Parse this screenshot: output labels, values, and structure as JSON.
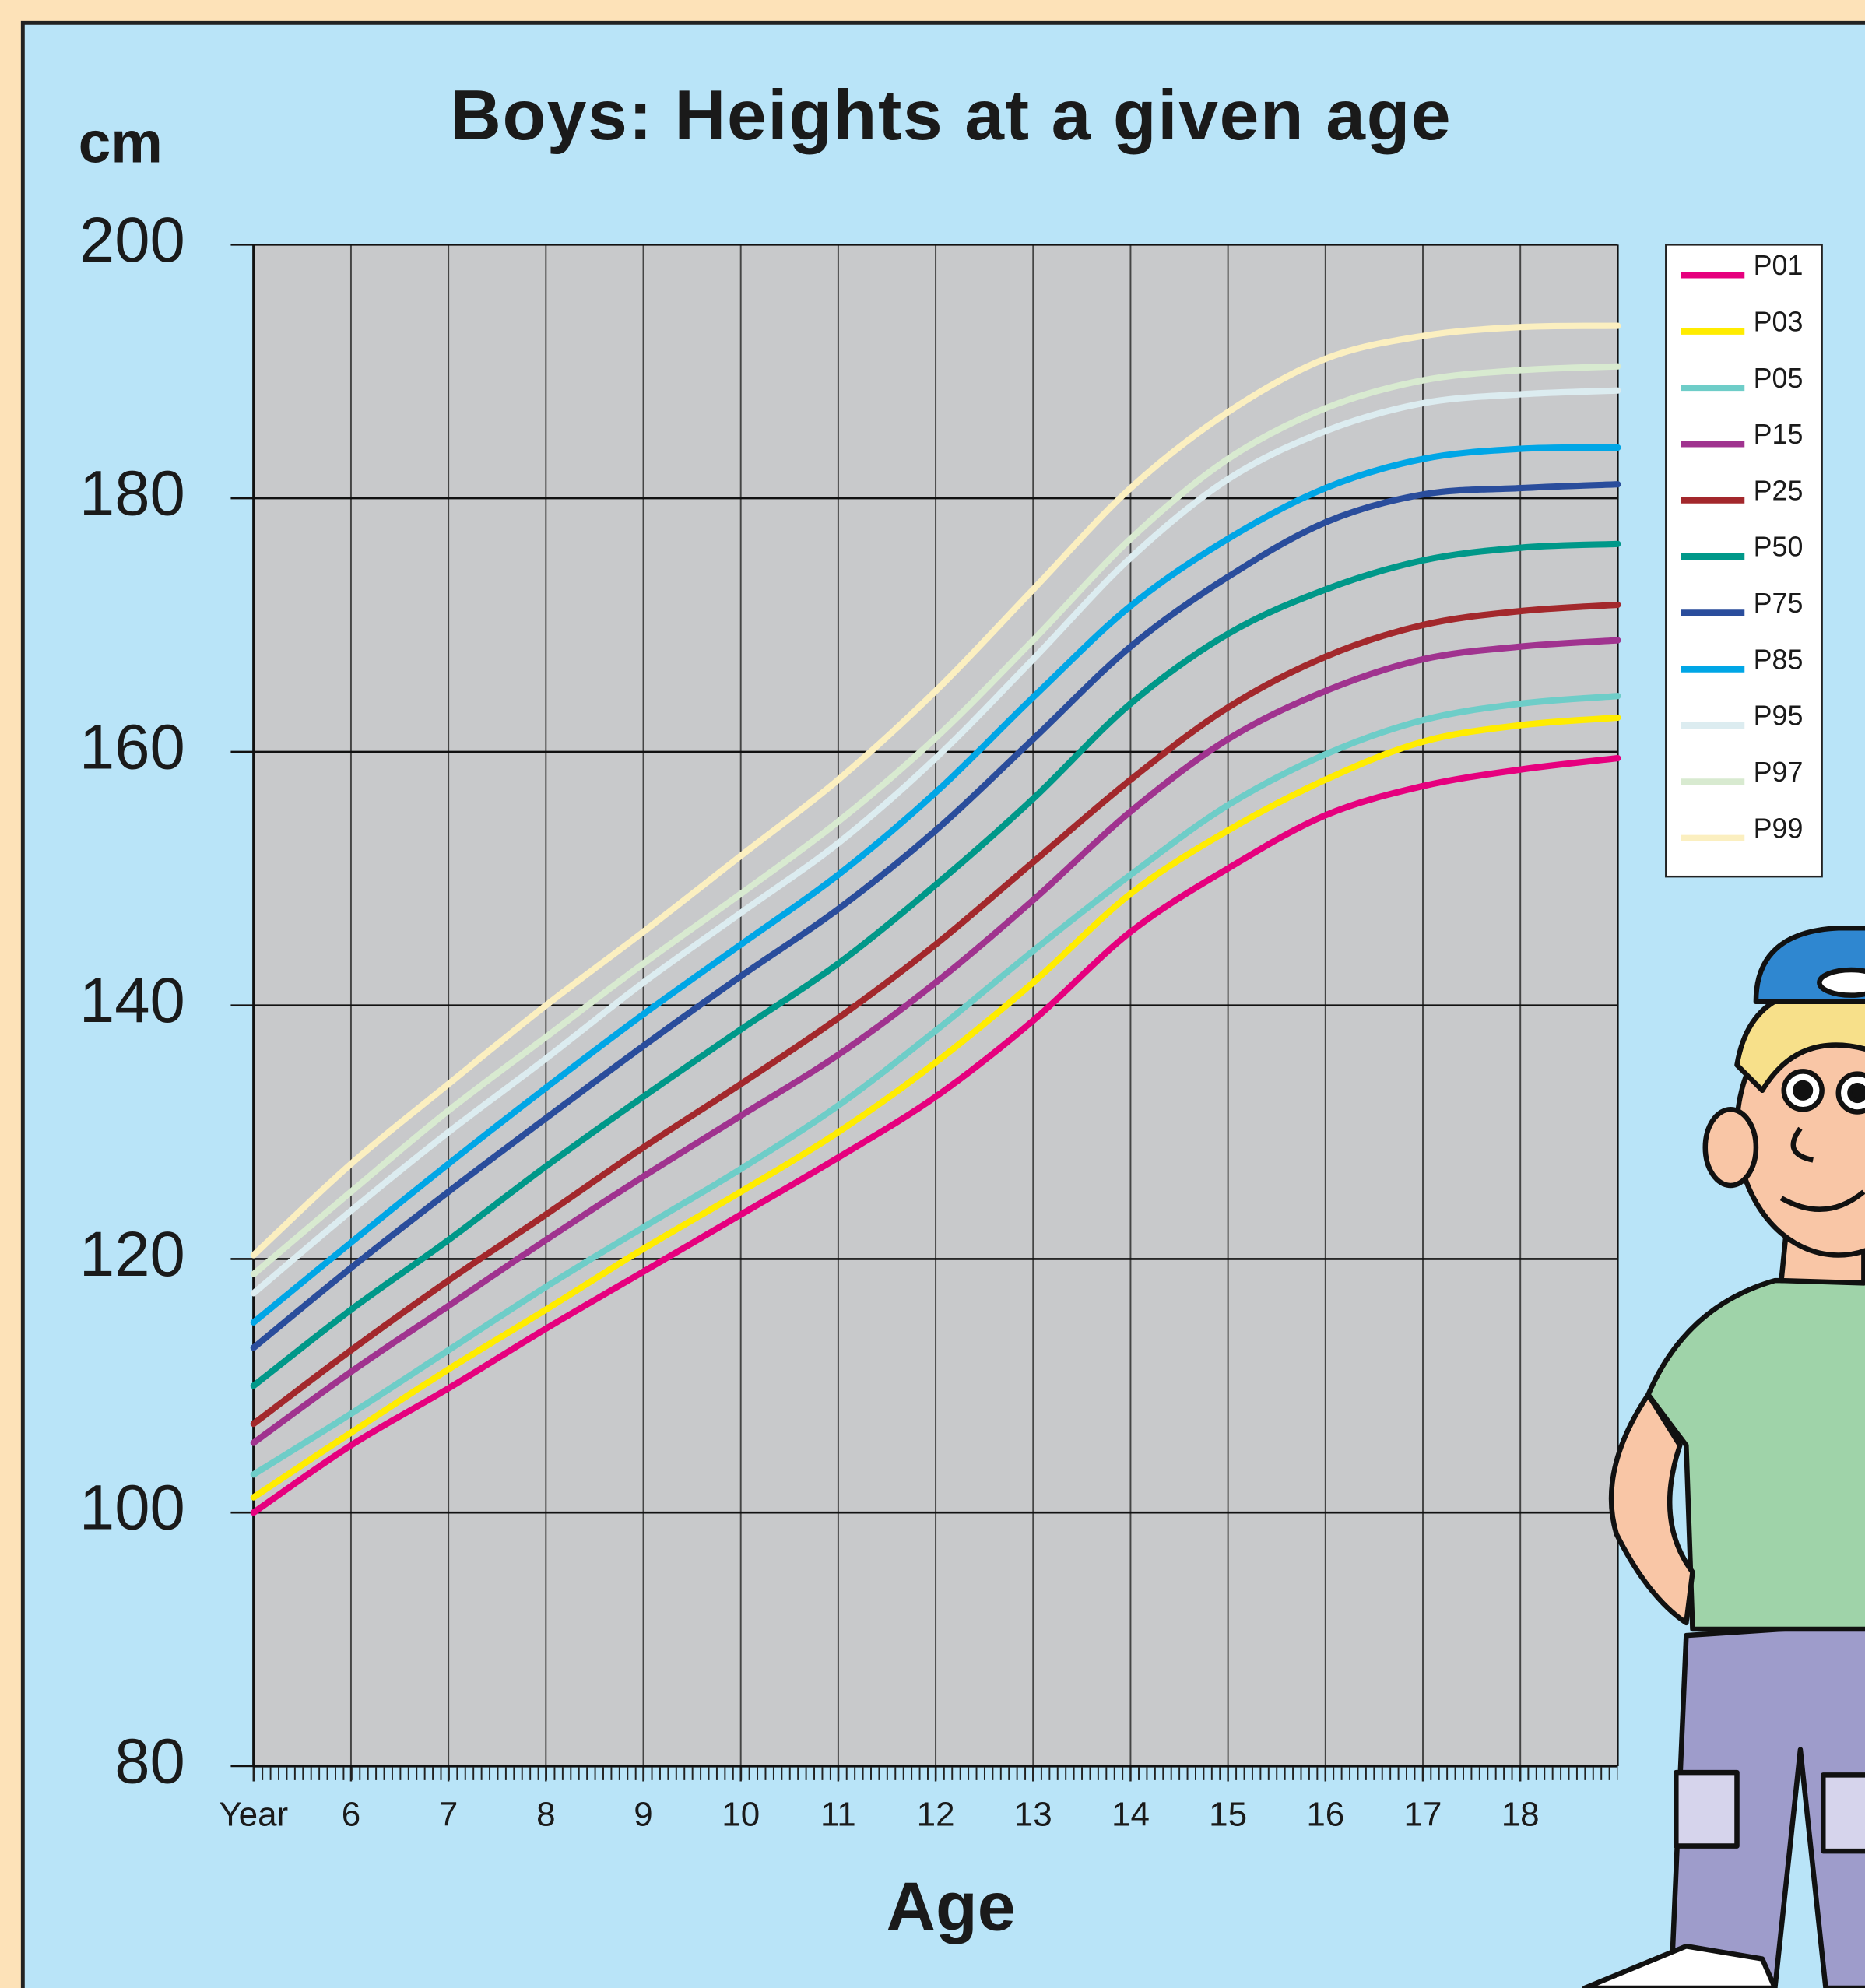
{
  "chart_data": {
    "type": "line",
    "title": "Boys: Heights at a given age",
    "y_label": "cm",
    "x_label": "Age",
    "x": [
      5,
      6,
      7,
      8,
      9,
      10,
      11,
      12,
      13,
      14,
      15,
      16,
      17,
      18,
      19
    ],
    "xlim": [
      5,
      19
    ],
    "xticks": [
      {
        "value": 5,
        "label": "Year"
      },
      6,
      7,
      8,
      9,
      10,
      11,
      12,
      13,
      14,
      15,
      16,
      17,
      18
    ],
    "ylim": [
      80,
      200
    ],
    "yticks": [
      80,
      100,
      120,
      140,
      160,
      180,
      200
    ],
    "grid": true,
    "legend": "top-right",
    "series": [
      {
        "name": "P01",
        "color": "#e6007e",
        "values": [
          100,
          105.3,
          109.8,
          114.5,
          119,
          123.5,
          128,
          132.8,
          138.8,
          145.8,
          150.8,
          155,
          157.3,
          158.6,
          159.5
        ]
      },
      {
        "name": "P03",
        "color": "#ffec00",
        "values": [
          101.2,
          106.3,
          111.3,
          116,
          120.8,
          125.3,
          130,
          135.5,
          141.8,
          148.8,
          153.8,
          157.8,
          160.8,
          162.1,
          162.7
        ]
      },
      {
        "name": "P05",
        "color": "#6ecdc8",
        "values": [
          103,
          107.8,
          112.8,
          117.8,
          122.5,
          127.1,
          132.1,
          138,
          144.3,
          150.3,
          155.8,
          159.8,
          162.5,
          163.8,
          164.4
        ]
      },
      {
        "name": "P15",
        "color": "#a0338f",
        "values": [
          105.5,
          111.1,
          116.3,
          121.5,
          126.5,
          131.3,
          136.1,
          141.8,
          148.3,
          155.3,
          161,
          164.8,
          167.3,
          168.3,
          168.8
        ]
      },
      {
        "name": "P25",
        "color": "#a3282c",
        "values": [
          107,
          112.8,
          118.3,
          123.5,
          128.8,
          133.8,
          139,
          144.8,
          151.3,
          157.8,
          163.5,
          167.5,
          170,
          171.1,
          171.6
        ]
      },
      {
        "name": "P50",
        "color": "#009889",
        "values": [
          110,
          116,
          121.5,
          127.3,
          132.8,
          138.1,
          143.3,
          149.5,
          156.3,
          163.8,
          169.3,
          172.8,
          175.1,
          176.1,
          176.4
        ]
      },
      {
        "name": "P75",
        "color": "#2a4d9c",
        "values": [
          113,
          119.3,
          125.3,
          131.1,
          136.8,
          142.3,
          147.6,
          153.8,
          161,
          168.3,
          173.8,
          178.1,
          180.3,
          180.8,
          181.1
        ]
      },
      {
        "name": "P85",
        "color": "#00a6e6",
        "values": [
          115,
          121.3,
          127.5,
          133.5,
          139.3,
          144.8,
          150.3,
          156.8,
          164.3,
          171.5,
          176.8,
          180.8,
          183.1,
          183.9,
          184
        ]
      },
      {
        "name": "P95",
        "color": "#dcecf0",
        "values": [
          117.3,
          123.8,
          130,
          135.8,
          141.8,
          147.3,
          152.8,
          159.5,
          167.3,
          175.3,
          181.5,
          185.3,
          187.5,
          188.2,
          188.5
        ]
      },
      {
        "name": "P97",
        "color": "#d8ead0",
        "values": [
          118.8,
          125.3,
          131.7,
          137.5,
          143.3,
          148.8,
          154.5,
          161.1,
          168.8,
          176.8,
          183.1,
          187.1,
          189.3,
          190.1,
          190.4
        ]
      },
      {
        "name": "P99",
        "color": "#fbefc0",
        "values": [
          120.3,
          127.5,
          133.8,
          140,
          145.8,
          151.8,
          157.8,
          164.8,
          172.8,
          180.8,
          186.8,
          191,
          192.8,
          193.5,
          193.6
        ]
      }
    ]
  }
}
